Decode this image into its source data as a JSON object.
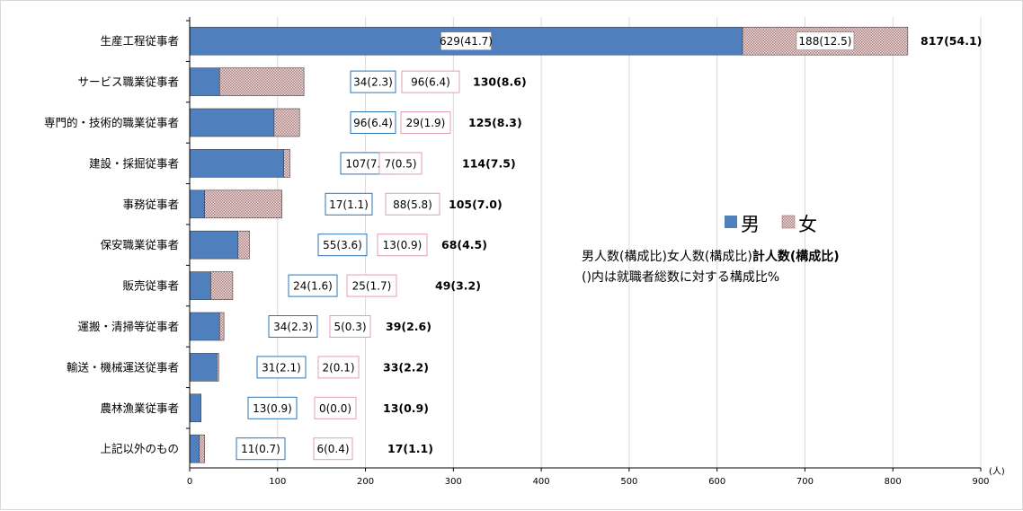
{
  "chart_data": {
    "type": "bar",
    "orientation": "horizontal",
    "stacked": true,
    "categories": [
      "生産工程従事者",
      "サービス職業従事者",
      "専門的・技術的職業従事者",
      "建設・採掘従事者",
      "事務従事者",
      "保安職業従事者",
      "販売従事者",
      "運搬・清掃等従事者",
      "輸送・機械運送従事者",
      "農林漁業従事者",
      "上記以外のもの"
    ],
    "series": [
      {
        "name": "男",
        "values": [
          629,
          34,
          96,
          107,
          17,
          55,
          24,
          34,
          31,
          13,
          11
        ],
        "labels": [
          "629(41.7)",
          "34(2.3)",
          "96(6.4)",
          "107(7.1)",
          "17(1.1)",
          "55(3.6)",
          "24(1.6)",
          "34(2.3)",
          "31(2.1)",
          "13(0.9)",
          "11(0.7)"
        ],
        "color": "#4f7fbd"
      },
      {
        "name": "女",
        "values": [
          188,
          96,
          29,
          7,
          88,
          13,
          25,
          5,
          2,
          0,
          6
        ],
        "labels": [
          "188(12.5)",
          "96(6.4)",
          "29(1.9)",
          "7(0.5)",
          "88(5.8)",
          "13(0.9)",
          "25(1.7)",
          "5(0.3)",
          "2(0.1)",
          "0(0.0)",
          "6(0.4)"
        ],
        "color": "#c8a0a0"
      }
    ],
    "totals": [
      "817(54.1)",
      "130(8.6)",
      "125(8.3)",
      "114(7.5)",
      "105(7.0)",
      "68(4.5)",
      "49(3.2)",
      "39(2.6)",
      "33(2.2)",
      "13(0.9)",
      "17(1.1)"
    ],
    "xlim": [
      0,
      900
    ],
    "xticks": [
      0,
      100,
      200,
      300,
      400,
      500,
      600,
      700,
      800,
      900
    ],
    "xunit": "(人)",
    "grid": true,
    "legend_position": "right",
    "notes": {
      "line1_plain": "男人数(構成比)女人数(構成比)",
      "line1_bold": "計人数(構成比)",
      "line2": "()内は就職者総数に対する構成比%"
    },
    "colors": {
      "male_fill": "#4f7fbd",
      "male_box_border": "#2e75b6",
      "female_box_border": "#e0a0b4",
      "grid": "#d9d9d9"
    }
  }
}
